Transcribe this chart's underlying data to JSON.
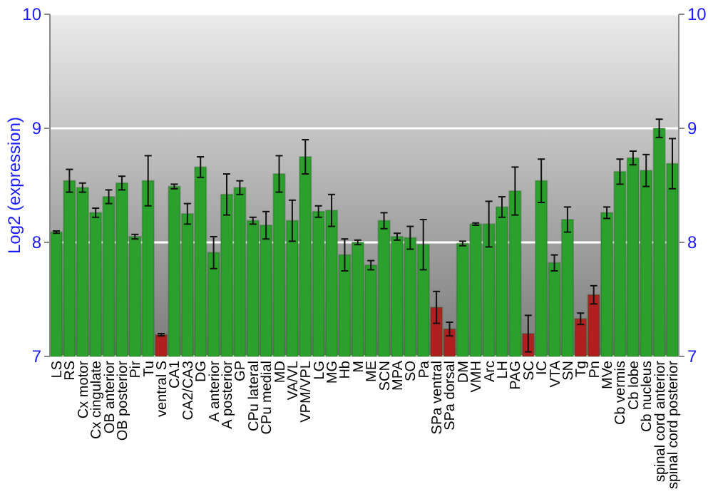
{
  "chart_data": {
    "type": "bar",
    "ylabel": "Log2 (expression)",
    "categories": [
      "LS",
      "RS",
      "Cx motor",
      "Cx cingulate",
      "OB anterior",
      "OB posterior",
      "Pir",
      "Tu",
      "ventral S",
      "CA1",
      "CA2/CA3",
      "DG",
      "A anterior",
      "A posterior",
      "GP",
      "CPu lateral",
      "CPu medial",
      "MD",
      "VA/VL",
      "VPM/VPL",
      "LG",
      "MG",
      "Hb",
      "M",
      "ME",
      "SCN",
      "MPA",
      "SO",
      "Pa",
      "SPa ventral",
      "SPa dorsal",
      "DM",
      "VMH",
      "Arc",
      "LH",
      "PAG",
      "SC",
      "IC",
      "VTA",
      "SN",
      "Tg",
      "Pn",
      "MVe",
      "Cb vermis",
      "Cb lobe",
      "Cb nucleus",
      "spinal cord anterior",
      "spinal cord posterior"
    ],
    "values": [
      8.09,
      8.54,
      8.48,
      8.26,
      8.4,
      8.52,
      8.05,
      8.54,
      7.19,
      8.49,
      8.25,
      8.66,
      7.91,
      8.42,
      8.48,
      8.19,
      8.15,
      8.6,
      8.19,
      8.75,
      8.27,
      8.28,
      7.89,
      8.0,
      7.8,
      8.19,
      8.05,
      8.04,
      7.98,
      7.43,
      7.24,
      7.99,
      8.16,
      8.16,
      8.31,
      8.45,
      7.2,
      8.54,
      7.82,
      8.2,
      7.33,
      7.54,
      8.26,
      8.62,
      8.74,
      8.63,
      9.0,
      8.69
    ],
    "errors": [
      0.01,
      0.1,
      0.04,
      0.04,
      0.06,
      0.06,
      0.02,
      0.22,
      0.01,
      0.02,
      0.09,
      0.09,
      0.14,
      0.18,
      0.06,
      0.03,
      0.12,
      0.16,
      0.18,
      0.15,
      0.05,
      0.14,
      0.14,
      0.02,
      0.04,
      0.07,
      0.03,
      0.1,
      0.22,
      0.14,
      0.06,
      0.02,
      0.01,
      0.2,
      0.09,
      0.21,
      0.16,
      0.19,
      0.07,
      0.11,
      0.05,
      0.08,
      0.05,
      0.11,
      0.06,
      0.14,
      0.08,
      0.22
    ],
    "colors": [
      "#2ca02c",
      "#2ca02c",
      "#2ca02c",
      "#2ca02c",
      "#2ca02c",
      "#2ca02c",
      "#2ca02c",
      "#2ca02c",
      "#b02020",
      "#2ca02c",
      "#2ca02c",
      "#2ca02c",
      "#2ca02c",
      "#2ca02c",
      "#2ca02c",
      "#2ca02c",
      "#2ca02c",
      "#2ca02c",
      "#2ca02c",
      "#2ca02c",
      "#2ca02c",
      "#2ca02c",
      "#2ca02c",
      "#2ca02c",
      "#2ca02c",
      "#2ca02c",
      "#2ca02c",
      "#2ca02c",
      "#2ca02c",
      "#b02020",
      "#b02020",
      "#2ca02c",
      "#2ca02c",
      "#2ca02c",
      "#2ca02c",
      "#2ca02c",
      "#b02020",
      "#2ca02c",
      "#2ca02c",
      "#2ca02c",
      "#b02020",
      "#b02020",
      "#2ca02c",
      "#2ca02c",
      "#2ca02c",
      "#2ca02c",
      "#2ca02c",
      "#2ca02c"
    ],
    "ylim": [
      7,
      10
    ],
    "yticks": [
      7,
      8,
      9,
      10
    ],
    "y2lim": [
      7,
      10
    ],
    "y2ticks": [
      7,
      8,
      9,
      10
    ],
    "grid": "y"
  }
}
